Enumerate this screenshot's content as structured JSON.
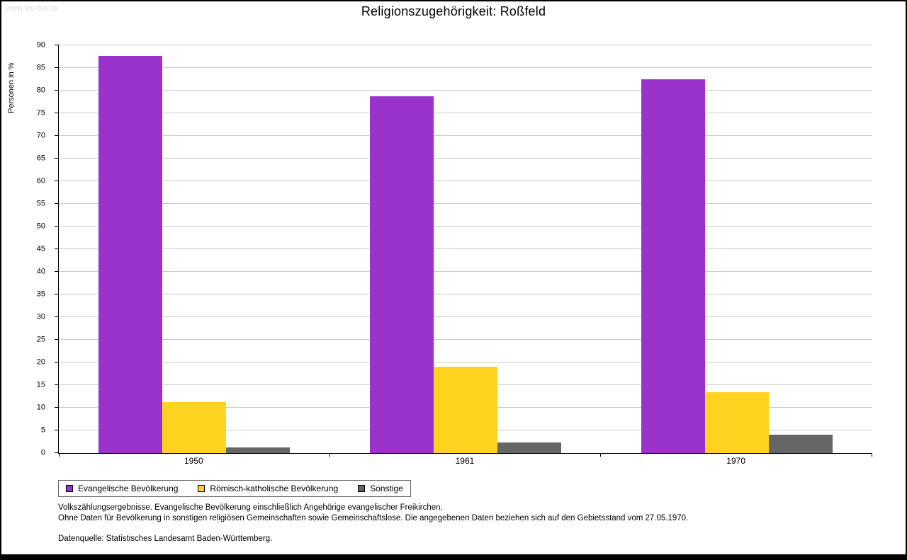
{
  "watermark": "www.leo-bw.de",
  "title": "Religionszugehörigkeit: Roßfeld",
  "chart_data": {
    "type": "bar",
    "categories": [
      "1950",
      "1961",
      "1970"
    ],
    "series": [
      {
        "name": "Evangelische Bevölkerung",
        "color": "#9933cc",
        "values": [
          87.6,
          78.7,
          82.5
        ]
      },
      {
        "name": "Römisch-katholische Bevölkerung",
        "color": "#ffd320",
        "values": [
          11.3,
          19.0,
          13.5
        ]
      },
      {
        "name": "Sonstige",
        "color": "#666666",
        "values": [
          1.2,
          2.4,
          4.1
        ]
      }
    ],
    "title": "Religionszugehörigkeit: Roßfeld",
    "xlabel": "",
    "ylabel": "Personen in %",
    "ylim": [
      0,
      90
    ],
    "ytick_step": 5,
    "grid": true,
    "legend_position": "bottom"
  },
  "footnotes": [
    "Volkszählungsergebnisse. Evangelische Bevölkerung einschließlich Angehörige evangelischer Freikirchen.",
    "Ohne Daten für Bevölkerung in sonstigen religiösen Gemeinschaften sowie Gemeinschaftslose. Die angegebenen Daten beziehen sich auf den Gebietsstand vom 27.05.1970.",
    "Datenquelle: Statistisches Landesamt Baden-Württemberg."
  ]
}
